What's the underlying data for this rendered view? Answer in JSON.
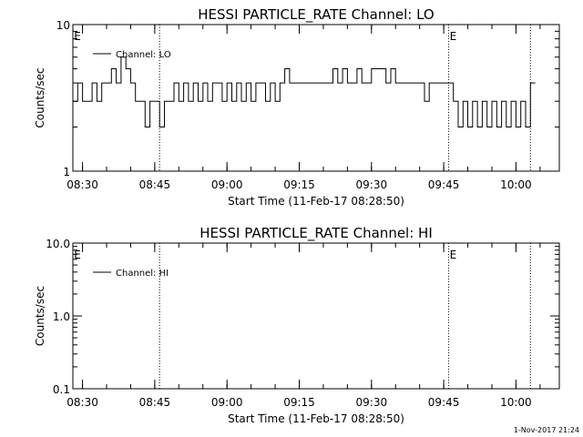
{
  "stamp": "1-Nov-2017 21:24",
  "chart_data": [
    {
      "type": "line",
      "title": "HESSI PARTICLE_RATE Channel: LO",
      "xlabel": "Start Time (11-Feb-17 08:28:50)",
      "ylabel": "Counts/sec",
      "yscale": "log",
      "ylim": [
        1,
        10
      ],
      "xlim": [
        "08:28",
        "10:09"
      ],
      "ytick_labels": [
        "1",
        "10"
      ],
      "xtick_labels": [
        "08:30",
        "08:45",
        "09:00",
        "09:15",
        "09:30",
        "09:45",
        "10:00"
      ],
      "event_lines": [
        "08:46",
        "09:46",
        "10:03"
      ],
      "event_marks": [
        "E",
        "E"
      ],
      "legend_position": "top-left",
      "series": [
        {
          "name": "Channel: LO",
          "x": [
            "08:28",
            "08:29",
            "08:30",
            "08:31",
            "08:32",
            "08:33",
            "08:34",
            "08:35",
            "08:36",
            "08:37",
            "08:38",
            "08:39",
            "08:40",
            "08:41",
            "08:42",
            "08:43",
            "08:44",
            "08:45",
            "08:46",
            "08:47",
            "08:48",
            "08:49",
            "08:50",
            "08:51",
            "08:52",
            "08:53",
            "08:54",
            "08:55",
            "08:56",
            "08:57",
            "08:58",
            "08:59",
            "09:00",
            "09:01",
            "09:02",
            "09:03",
            "09:04",
            "09:05",
            "09:06",
            "09:07",
            "09:08",
            "09:09",
            "09:10",
            "09:11",
            "09:12",
            "09:13",
            "09:14",
            "09:15",
            "09:16",
            "09:17",
            "09:18",
            "09:19",
            "09:20",
            "09:21",
            "09:22",
            "09:23",
            "09:24",
            "09:25",
            "09:26",
            "09:27",
            "09:28",
            "09:29",
            "09:30",
            "09:31",
            "09:32",
            "09:33",
            "09:34",
            "09:35",
            "09:36",
            "09:37",
            "09:38",
            "09:39",
            "09:40",
            "09:41",
            "09:42",
            "09:43",
            "09:44",
            "09:45",
            "09:46",
            "09:47",
            "09:48",
            "09:49",
            "09:50",
            "09:51",
            "09:52",
            "09:53",
            "09:54",
            "09:55",
            "09:56",
            "09:57",
            "09:58",
            "09:59",
            "10:00",
            "10:01",
            "10:02",
            "10:03"
          ],
          "values": [
            3,
            4,
            3,
            3,
            4,
            3,
            4,
            4,
            5,
            4,
            6,
            5,
            4,
            3,
            3,
            2,
            3,
            3,
            2,
            3,
            3,
            4,
            3,
            4,
            3,
            4,
            3,
            4,
            3,
            4,
            4,
            3,
            4,
            3,
            4,
            3,
            4,
            3,
            4,
            4,
            3,
            4,
            3,
            4,
            5,
            4,
            4,
            4,
            4,
            4,
            4,
            4,
            4,
            4,
            5,
            4,
            5,
            4,
            4,
            5,
            4,
            4,
            5,
            5,
            5,
            4,
            5,
            4,
            4,
            4,
            4,
            4,
            4,
            3,
            4,
            4,
            4,
            4,
            4,
            3,
            2,
            3,
            2,
            3,
            2,
            3,
            2,
            3,
            2,
            3,
            2,
            3,
            2,
            3,
            2,
            4
          ]
        }
      ]
    },
    {
      "type": "line",
      "title": "HESSI PARTICLE_RATE Channel: HI",
      "xlabel": "Start Time (11-Feb-17 08:28:50)",
      "ylabel": "Counts/sec",
      "yscale": "log",
      "ylim": [
        0.1,
        10
      ],
      "xlim": [
        "08:28",
        "10:09"
      ],
      "ytick_labels": [
        "0.1",
        "1.0",
        "10.0"
      ],
      "xtick_labels": [
        "08:30",
        "08:45",
        "09:00",
        "09:15",
        "09:30",
        "09:45",
        "10:00"
      ],
      "event_lines": [
        "08:46",
        "09:46",
        "10:03"
      ],
      "event_marks": [
        "E",
        "E"
      ],
      "legend_position": "top-left",
      "series": [
        {
          "name": "Channel: HI",
          "x": [],
          "values": []
        }
      ]
    }
  ]
}
